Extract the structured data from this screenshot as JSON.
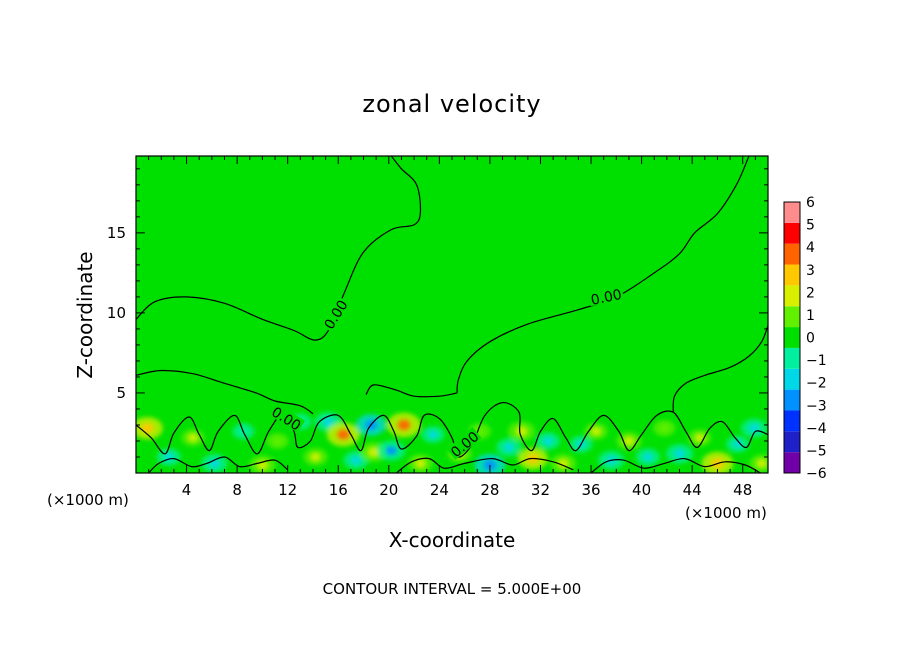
{
  "chart_data": {
    "type": "heatmap",
    "title": "zonal velocity",
    "xlabel": "X-coordinate",
    "ylabel": "Z-coordinate",
    "x_units_left": "(×1000 m)",
    "x_units_right": "(×1000 m)",
    "footer": "CONTOUR INTERVAL = 5.000E+00",
    "xlim": [
      0,
      50
    ],
    "ylim": [
      0,
      19.8
    ],
    "x_ticks": [
      4,
      8,
      12,
      16,
      20,
      24,
      28,
      32,
      36,
      40,
      44,
      48
    ],
    "y_ticks": [
      5,
      10,
      15
    ],
    "contour_label": "0.00",
    "background_value": 0,
    "colorbar": {
      "levels": [
        -6,
        -5,
        -4,
        -3,
        -2,
        -1,
        0,
        1,
        2,
        3,
        4,
        5,
        6
      ],
      "colors": [
        "#7000a8",
        "#2020c8",
        "#0032ff",
        "#0090ff",
        "#00d8e8",
        "#00f0a0",
        "#00e000",
        "#60f000",
        "#d8f000",
        "#ffc800",
        "#ff6400",
        "#ff0000",
        "#ff8c8c"
      ]
    },
    "anomalies": [
      {
        "x": 0.9,
        "z": 2.8,
        "v": 3.2
      },
      {
        "x": 2.6,
        "z": 1.0,
        "v": -1.8
      },
      {
        "x": 4.5,
        "z": 2.2,
        "v": 1.6
      },
      {
        "x": 6.2,
        "z": 0.6,
        "v": -2.2
      },
      {
        "x": 8.5,
        "z": 2.6,
        "v": -1.4
      },
      {
        "x": 10.0,
        "z": 0.5,
        "v": 2.2
      },
      {
        "x": 11.2,
        "z": 2.0,
        "v": 1.3
      },
      {
        "x": 13.0,
        "z": 3.2,
        "v": -1.5
      },
      {
        "x": 14.2,
        "z": 1.0,
        "v": 1.8
      },
      {
        "x": 15.2,
        "z": 3.2,
        "v": -2.4
      },
      {
        "x": 16.4,
        "z": 2.4,
        "v": 3.6
      },
      {
        "x": 17.4,
        "z": 0.8,
        "v": -2.0
      },
      {
        "x": 18.6,
        "z": 3.0,
        "v": -3.0
      },
      {
        "x": 18.8,
        "z": 1.3,
        "v": 2.4
      },
      {
        "x": 20.2,
        "z": 1.4,
        "v": -2.6
      },
      {
        "x": 21.2,
        "z": 3.0,
        "v": 3.8
      },
      {
        "x": 22.5,
        "z": 0.6,
        "v": 2.0
      },
      {
        "x": 23.5,
        "z": 2.4,
        "v": -1.6
      },
      {
        "x": 25.6,
        "z": 1.2,
        "v": 1.8
      },
      {
        "x": 27.2,
        "z": 2.6,
        "v": 1.4
      },
      {
        "x": 28.0,
        "z": 0.5,
        "v": -3.2
      },
      {
        "x": 29.5,
        "z": 1.6,
        "v": -2.0
      },
      {
        "x": 30.5,
        "z": 2.6,
        "v": 2.4
      },
      {
        "x": 31.4,
        "z": 0.9,
        "v": 3.0
      },
      {
        "x": 32.6,
        "z": 2.0,
        "v": -1.8
      },
      {
        "x": 33.8,
        "z": 0.6,
        "v": 2.2
      },
      {
        "x": 35.2,
        "z": 1.8,
        "v": -1.6
      },
      {
        "x": 36.4,
        "z": 2.6,
        "v": 1.6
      },
      {
        "x": 37.6,
        "z": 0.8,
        "v": -2.2
      },
      {
        "x": 39.0,
        "z": 2.0,
        "v": 2.0
      },
      {
        "x": 40.5,
        "z": 1.0,
        "v": -1.8
      },
      {
        "x": 41.8,
        "z": 2.8,
        "v": 1.4
      },
      {
        "x": 43.0,
        "z": 1.2,
        "v": -2.4
      },
      {
        "x": 44.6,
        "z": 2.2,
        "v": 1.6
      },
      {
        "x": 46.0,
        "z": 0.6,
        "v": 3.4
      },
      {
        "x": 47.6,
        "z": 1.8,
        "v": -1.6
      },
      {
        "x": 48.9,
        "z": 2.8,
        "v": -2.2
      },
      {
        "x": 49.5,
        "z": 0.6,
        "v": 1.8
      }
    ],
    "contours": [
      {
        "level": 0,
        "points": [
          [
            0,
            9.6
          ],
          [
            1.5,
            10.7
          ],
          [
            4,
            11.0
          ],
          [
            7,
            10.6
          ],
          [
            10,
            9.6
          ],
          [
            12.5,
            8.9
          ],
          [
            14.2,
            8.3
          ],
          [
            15.3,
            9.0
          ],
          [
            16.5,
            11.3
          ],
          [
            18,
            13.8
          ],
          [
            20.2,
            15.2
          ],
          [
            22,
            15.5
          ],
          [
            22.5,
            16.3
          ],
          [
            22.2,
            18.0
          ],
          [
            21,
            19.0
          ],
          [
            20.2,
            19.8
          ]
        ]
      },
      {
        "level": 0,
        "points": [
          [
            48.5,
            19.8
          ],
          [
            47.5,
            18.0
          ],
          [
            46,
            16.2
          ],
          [
            44.2,
            15.0
          ],
          [
            43,
            13.7
          ],
          [
            41,
            12.5
          ],
          [
            38,
            11.0
          ],
          [
            35,
            10.2
          ],
          [
            31,
            9.3
          ],
          [
            28,
            8.2
          ],
          [
            26.2,
            7.0
          ],
          [
            25.5,
            5.8
          ],
          [
            25.4,
            5.0
          ]
        ]
      },
      {
        "level": 0,
        "points": [
          [
            0,
            6.1
          ],
          [
            2,
            6.4
          ],
          [
            4.5,
            6.2
          ],
          [
            7,
            5.6
          ],
          [
            9.5,
            5.0
          ],
          [
            11,
            4.5
          ],
          [
            13,
            4.2
          ],
          [
            14,
            3.7
          ]
        ]
      },
      {
        "level": 0,
        "points": [
          [
            50,
            9.2
          ],
          [
            49.5,
            8.2
          ],
          [
            48.5,
            7.3
          ],
          [
            47,
            6.6
          ],
          [
            45,
            6.1
          ],
          [
            43.5,
            5.6
          ],
          [
            42.6,
            4.8
          ],
          [
            42.5,
            3.8
          ]
        ]
      },
      {
        "level": 0,
        "points": [
          [
            18.2,
            4.9
          ],
          [
            18.8,
            5.5
          ],
          [
            20.5,
            5.2
          ],
          [
            22,
            4.8
          ],
          [
            24,
            4.8
          ],
          [
            25.4,
            5.0
          ]
        ]
      },
      {
        "level": 0,
        "points": [
          [
            0,
            3.0
          ],
          [
            1.2,
            2.2
          ],
          [
            2.3,
            1.2
          ],
          [
            3.0,
            2.5
          ],
          [
            4.2,
            3.5
          ],
          [
            5.0,
            2.4
          ],
          [
            5.8,
            1.4
          ],
          [
            6.5,
            2.6
          ],
          [
            7.8,
            3.6
          ],
          [
            8.6,
            2.4
          ],
          [
            9.6,
            1.2
          ],
          [
            10.5,
            2.6
          ],
          [
            11.7,
            3.8
          ],
          [
            12.5,
            2.6
          ],
          [
            12.8,
            1.6
          ],
          [
            13.8,
            2.0
          ],
          [
            14.5,
            3.2
          ],
          [
            16.0,
            3.6
          ],
          [
            17.0,
            2.4
          ],
          [
            17.8,
            1.4
          ],
          [
            18.4,
            2.8
          ],
          [
            19.6,
            3.6
          ],
          [
            20.4,
            2.6
          ],
          [
            21.0,
            1.5
          ],
          [
            22.2,
            2.3
          ],
          [
            22.8,
            3.6
          ],
          [
            24.0,
            3.4
          ],
          [
            25.0,
            2.2
          ],
          [
            25.5,
            1.0
          ],
          [
            26.6,
            1.8
          ],
          [
            27.6,
            3.6
          ],
          [
            29.0,
            4.4
          ],
          [
            30.3,
            3.8
          ],
          [
            30.4,
            2.4
          ],
          [
            31.3,
            1.4
          ],
          [
            32.0,
            2.6
          ],
          [
            33.0,
            3.4
          ],
          [
            34.0,
            2.2
          ],
          [
            34.8,
            1.4
          ],
          [
            35.8,
            2.6
          ],
          [
            37.0,
            3.6
          ],
          [
            38.2,
            2.6
          ],
          [
            39.0,
            1.4
          ],
          [
            40.0,
            2.4
          ],
          [
            41.2,
            3.6
          ],
          [
            42.5,
            3.8
          ],
          [
            43.5,
            2.6
          ],
          [
            44.4,
            1.6
          ],
          [
            45.4,
            2.8
          ],
          [
            46.4,
            3.2
          ],
          [
            47.4,
            2.2
          ],
          [
            48.3,
            1.6
          ],
          [
            49.0,
            2.6
          ],
          [
            50,
            2.4
          ]
        ]
      },
      {
        "level": 0,
        "points": [
          [
            1.0,
            0
          ],
          [
            1.8,
            0.6
          ],
          [
            3.0,
            0.9
          ],
          [
            4.4,
            0.4
          ],
          [
            5.6,
            0.6
          ],
          [
            7.0,
            1.0
          ],
          [
            8.2,
            0.4
          ],
          [
            9.6,
            0.6
          ],
          [
            11.0,
            0.8
          ],
          [
            12.0,
            0.2
          ]
        ]
      },
      {
        "level": 0,
        "points": [
          [
            20.6,
            0
          ],
          [
            21.8,
            0.7
          ],
          [
            23.2,
            0.9
          ],
          [
            24.4,
            0.3
          ],
          [
            26.0,
            0.6
          ],
          [
            28.2,
            0.9
          ],
          [
            29.8,
            0.5
          ],
          [
            31.2,
            0.9
          ],
          [
            33.0,
            0.7
          ],
          [
            34.6,
            0.2
          ]
        ]
      },
      {
        "level": 0,
        "points": [
          [
            36.0,
            0
          ],
          [
            37.2,
            0.7
          ],
          [
            38.6,
            0.8
          ],
          [
            40.2,
            0.3
          ],
          [
            41.8,
            0.6
          ],
          [
            43.4,
            0.9
          ],
          [
            45.0,
            0.4
          ],
          [
            46.6,
            0.7
          ],
          [
            48.2,
            0.5
          ],
          [
            49.4,
            0
          ]
        ]
      }
    ],
    "contour_labels": [
      {
        "text": "0.00",
        "x": 15.8,
        "z": 9.9,
        "angle": -58
      },
      {
        "text": "0.00",
        "x": 37.2,
        "z": 11.0,
        "angle": -12
      },
      {
        "text": "0.00",
        "x": 11.9,
        "z": 3.4,
        "angle": 32
      },
      {
        "text": "0.00",
        "x": 26.0,
        "z": 1.8,
        "angle": -40
      }
    ]
  }
}
